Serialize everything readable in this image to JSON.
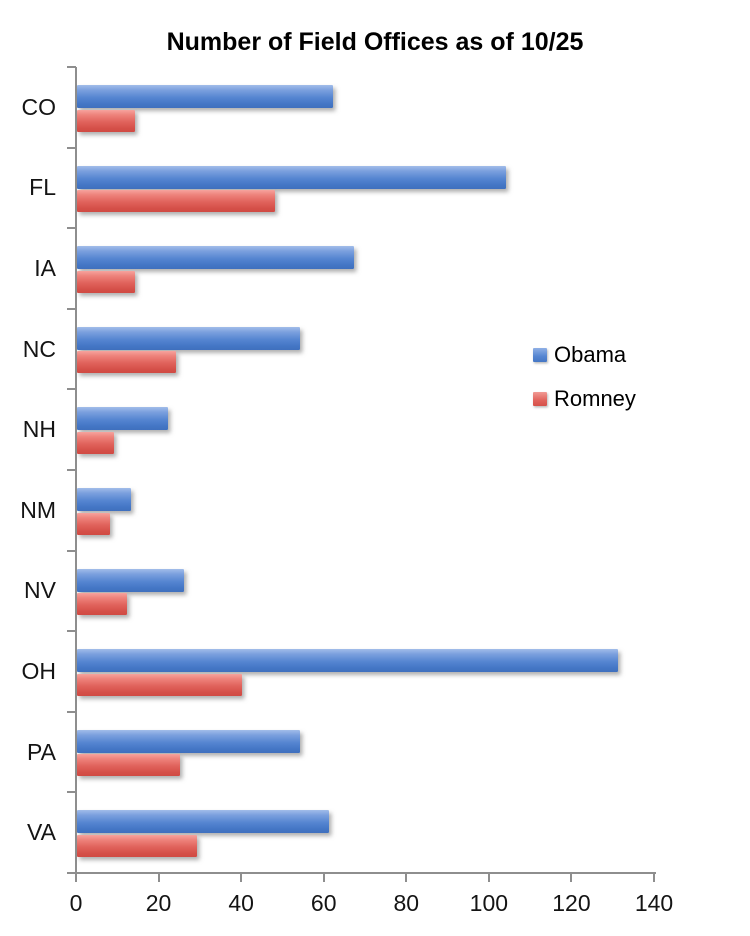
{
  "chart_data": {
    "type": "bar",
    "orientation": "horizontal",
    "title": "Number of Field Offices as of 10/25",
    "categories": [
      "CO",
      "FL",
      "IA",
      "NC",
      "NH",
      "NM",
      "NV",
      "OH",
      "PA",
      "VA"
    ],
    "series": [
      {
        "name": "Obama",
        "color": "#5585d1",
        "values": [
          62,
          104,
          67,
          54,
          22,
          13,
          26,
          131,
          54,
          61
        ]
      },
      {
        "name": "Romney",
        "color": "#e0625b",
        "values": [
          14,
          48,
          14,
          24,
          9,
          8,
          12,
          40,
          25,
          29
        ]
      }
    ],
    "xlabel": "",
    "ylabel": "",
    "x_axis": {
      "min": 0,
      "max": 140,
      "ticks": [
        0,
        20,
        40,
        60,
        80,
        100,
        120,
        140
      ]
    },
    "grid": false,
    "legend_position": "middle-right"
  }
}
